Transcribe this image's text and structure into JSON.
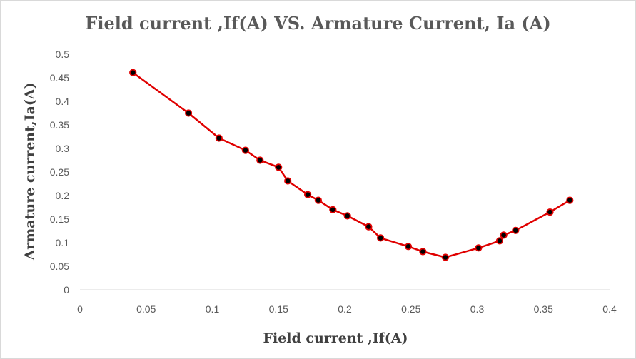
{
  "chart_data": {
    "type": "line",
    "title": "Field current ,If(A)  VS. Armature  Current, Ia (A)",
    "xlabel": "Field current ,If(A)",
    "ylabel": "Armature current,Ia(A)",
    "xlim": [
      0,
      0.4
    ],
    "ylim": [
      0,
      0.5
    ],
    "xticks": [
      0,
      0.05,
      0.1,
      0.15,
      0.2,
      0.25,
      0.3,
      0.35,
      0.4
    ],
    "yticks": [
      0,
      0.05,
      0.1,
      0.15,
      0.2,
      0.25,
      0.3,
      0.35,
      0.4,
      0.45,
      0.5
    ],
    "grid": false,
    "legend": "none",
    "series": [
      {
        "color": "#e00000",
        "marker_color": "#000000",
        "x": [
          0.04,
          0.082,
          0.105,
          0.125,
          0.136,
          0.15,
          0.157,
          0.172,
          0.18,
          0.191,
          0.202,
          0.218,
          0.227,
          0.248,
          0.259,
          0.276,
          0.301,
          0.317,
          0.32,
          0.329,
          0.355,
          0.37
        ],
        "y": [
          0.461,
          0.375,
          0.322,
          0.296,
          0.275,
          0.26,
          0.231,
          0.202,
          0.19,
          0.17,
          0.157,
          0.134,
          0.11,
          0.092,
          0.081,
          0.069,
          0.089,
          0.104,
          0.116,
          0.126,
          0.165,
          0.19
        ]
      }
    ]
  }
}
